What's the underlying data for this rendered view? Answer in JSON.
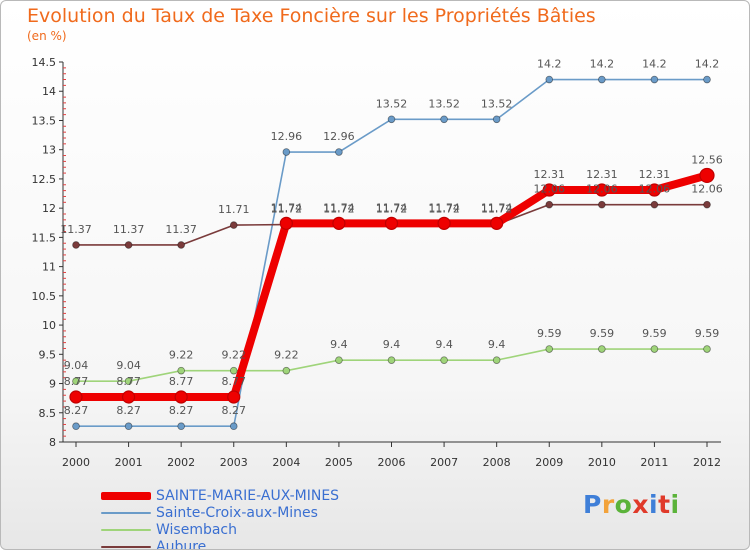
{
  "title": "Evolution du Taux de Taxe Foncière sur les Propriétés Bâties",
  "subtitle": "(en %)",
  "logo": "Proxiti",
  "logo_colors": [
    "#3f7fd8",
    "#f2a23a",
    "#5bb33a",
    "#e03a2a",
    "#3f7fd8",
    "#e03a2a",
    "#5bb33a"
  ],
  "chart_data": {
    "type": "line",
    "title": "Evolution du Taux de Taxe Foncière sur les Propriétés Bâties",
    "subtitle": "(en %)",
    "xlabel": "",
    "ylabel": "(en %)",
    "x": [
      "2000",
      "2001",
      "2002",
      "2003",
      "2004",
      "2005",
      "2006",
      "2007",
      "2008",
      "2009",
      "2010",
      "2011",
      "2012"
    ],
    "ylim": [
      8,
      14.5
    ],
    "yticks": [
      "8",
      "8.5",
      "9",
      "9.5",
      "10",
      "10.5",
      "11",
      "11.5",
      "12",
      "12.5",
      "13",
      "13.5",
      "14",
      "14.5"
    ],
    "grid": false,
    "legend_position": "bottom-left",
    "series": [
      {
        "name": "SAINTE-MARIE-AUX-MINES",
        "color": "#ee0000",
        "values": [
          8.77,
          8.77,
          8.77,
          8.77,
          11.74,
          11.74,
          11.74,
          11.74,
          11.74,
          12.31,
          12.31,
          12.31,
          12.56
        ],
        "labels": [
          "8.77",
          "8.77",
          "8.77",
          "8.77",
          "11.74",
          "11.74",
          "11.74",
          "11.74",
          "11.74",
          "12.31",
          "12.31",
          "12.31",
          "12.56"
        ]
      },
      {
        "name": "Sainte-Croix-aux-Mines",
        "color": "#6a9bc8",
        "values": [
          8.27,
          8.27,
          8.27,
          8.27,
          12.96,
          12.96,
          13.52,
          13.52,
          13.52,
          14.2,
          14.2,
          14.2,
          14.2
        ],
        "labels": [
          "8.27",
          "8.27",
          "8.27",
          "8.27",
          "12.96",
          "12.96",
          "13.52",
          "13.52",
          "13.52",
          "14.2",
          "14.2",
          "14.2",
          "14.2"
        ]
      },
      {
        "name": "Wisembach",
        "color": "#9fd47a",
        "values": [
          9.04,
          9.04,
          9.22,
          9.22,
          9.22,
          9.4,
          9.4,
          9.4,
          9.4,
          9.59,
          9.59,
          9.59,
          9.59
        ],
        "labels": [
          "9.04",
          "9.04",
          "9.22",
          "9.22",
          "9.22",
          "9.4",
          "9.4",
          "9.4",
          "9.4",
          "9.59",
          "9.59",
          "9.59",
          "9.59"
        ]
      },
      {
        "name": "Aubure",
        "color": "#7a3b3b",
        "values": [
          11.37,
          11.37,
          11.37,
          11.71,
          11.72,
          11.72,
          11.72,
          11.72,
          11.72,
          12.06,
          12.06,
          12.06,
          12.06
        ],
        "labels": [
          "11.37",
          "11.37",
          "11.37",
          "11.71",
          "11.72",
          "11.72",
          "11.72",
          "11.72",
          "11.72",
          "12.06",
          "12.06",
          "12.06",
          "12.06"
        ]
      }
    ]
  }
}
